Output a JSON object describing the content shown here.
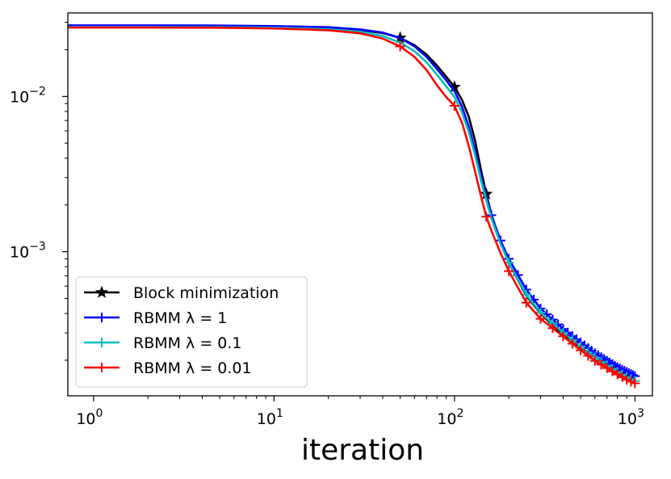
{
  "chart_data": {
    "type": "line",
    "title": "",
    "xlabel": "iteration",
    "ylabel": "",
    "xscale": "log",
    "yscale": "log",
    "xlim": [
      0.72,
      1250
    ],
    "ylim": [
      0.000118,
      0.0345
    ],
    "grid": false,
    "legend_position": "lower-left",
    "x_ticks": [
      {
        "value": 1,
        "base": "10",
        "exp": "0"
      },
      {
        "value": 10,
        "base": "10",
        "exp": "1"
      },
      {
        "value": 100,
        "base": "10",
        "exp": "2"
      },
      {
        "value": 1000,
        "base": "10",
        "exp": "3"
      }
    ],
    "y_ticks": [
      {
        "value": 0.01,
        "base": "10",
        "exp": "−2"
      },
      {
        "value": 0.001,
        "base": "10",
        "exp": "−3"
      }
    ],
    "series": [
      {
        "name": "Block minimization",
        "color": "#000000",
        "marker": "star",
        "x": [
          0.72,
          1,
          2,
          5,
          10,
          20,
          30,
          40,
          50,
          60,
          70,
          80,
          90,
          100,
          110,
          120,
          130,
          140,
          150,
          160,
          180,
          200,
          250,
          300,
          400,
          500,
          600,
          700,
          800,
          900,
          1000
        ],
        "y": [
          0.0285,
          0.0285,
          0.0285,
          0.0284,
          0.0282,
          0.0277,
          0.0268,
          0.0256,
          0.0238,
          0.0214,
          0.0186,
          0.0158,
          0.0134,
          0.0115,
          0.0095,
          0.0074,
          0.0052,
          0.0034,
          0.00235,
          0.00175,
          0.00115,
          0.00085,
          0.00052,
          0.0004,
          0.00029,
          0.000238,
          0.000208,
          0.000188,
          0.000172,
          0.000161,
          0.000152
        ],
        "marker_x": [
          50,
          100,
          150
        ]
      },
      {
        "name": "RBMM λ = 1",
        "color": "#0000ff",
        "marker": "plus",
        "x": [
          0.72,
          1,
          2,
          5,
          10,
          20,
          30,
          40,
          50,
          60,
          70,
          80,
          90,
          100,
          110,
          120,
          130,
          140,
          150,
          160,
          180,
          200,
          250,
          300,
          400,
          500,
          600,
          700,
          800,
          900,
          1000
        ],
        "y": [
          0.0287,
          0.0287,
          0.0287,
          0.0286,
          0.0284,
          0.0279,
          0.027,
          0.0258,
          0.0238,
          0.021,
          0.018,
          0.015,
          0.0127,
          0.0108,
          0.0086,
          0.0064,
          0.0045,
          0.0031,
          0.00225,
          0.00172,
          0.00118,
          0.0009,
          0.00057,
          0.00043,
          0.000318,
          0.00026,
          0.000222,
          0.000198,
          0.00018,
          0.000168,
          0.000158
        ],
        "marker_x": [
          160,
          180,
          200,
          225,
          250,
          275,
          300,
          325,
          350,
          375,
          400,
          425,
          450,
          475,
          500,
          525,
          550,
          575,
          600,
          625,
          650,
          675,
          700,
          725,
          750,
          775,
          800,
          825,
          850,
          875,
          900,
          925,
          950,
          975,
          1000
        ]
      },
      {
        "name": "RBMM λ = 0.1",
        "color": "#00bfbf",
        "marker": "plus",
        "x": [
          0.72,
          1,
          2,
          5,
          10,
          20,
          30,
          40,
          50,
          60,
          70,
          80,
          90,
          100,
          110,
          120,
          130,
          140,
          150,
          160,
          180,
          200,
          250,
          300,
          400,
          500,
          600,
          700,
          800,
          900,
          1000
        ],
        "y": [
          0.028,
          0.028,
          0.028,
          0.0279,
          0.0277,
          0.0271,
          0.0261,
          0.0245,
          0.0222,
          0.0196,
          0.0166,
          0.0138,
          0.0116,
          0.0099,
          0.0079,
          0.0059,
          0.0042,
          0.0029,
          0.00215,
          0.00165,
          0.00112,
          0.00085,
          0.00053,
          0.000405,
          0.0003,
          0.000245,
          0.000208,
          0.000185,
          0.000168,
          0.000156,
          0.000147
        ],
        "marker_x": [
          200,
          250,
          300,
          350,
          400,
          450,
          500,
          550,
          600,
          650,
          700,
          750,
          800,
          850,
          900,
          950,
          1000
        ]
      },
      {
        "name": "RBMM λ = 0.01",
        "color": "#ff0000",
        "marker": "plus",
        "x": [
          0.72,
          1,
          2,
          5,
          10,
          20,
          30,
          40,
          50,
          60,
          70,
          80,
          90,
          100,
          110,
          120,
          130,
          140,
          150,
          160,
          180,
          200,
          250,
          300,
          400,
          500,
          600,
          700,
          800,
          900,
          1000
        ],
        "y": [
          0.0278,
          0.0278,
          0.0278,
          0.0277,
          0.0274,
          0.0267,
          0.0255,
          0.0236,
          0.021,
          0.018,
          0.0148,
          0.0118,
          0.0099,
          0.0087,
          0.0068,
          0.0048,
          0.0033,
          0.0023,
          0.00168,
          0.00137,
          0.00098,
          0.00075,
          0.00047,
          0.00037,
          0.000285,
          0.000232,
          0.000198,
          0.000178,
          0.000162,
          0.00015,
          0.000142
        ],
        "marker_x": [
          50,
          100,
          150,
          200,
          250,
          300,
          350,
          400,
          450,
          500,
          550,
          600,
          650,
          700,
          750,
          800,
          850,
          900,
          950,
          1000
        ]
      }
    ]
  }
}
